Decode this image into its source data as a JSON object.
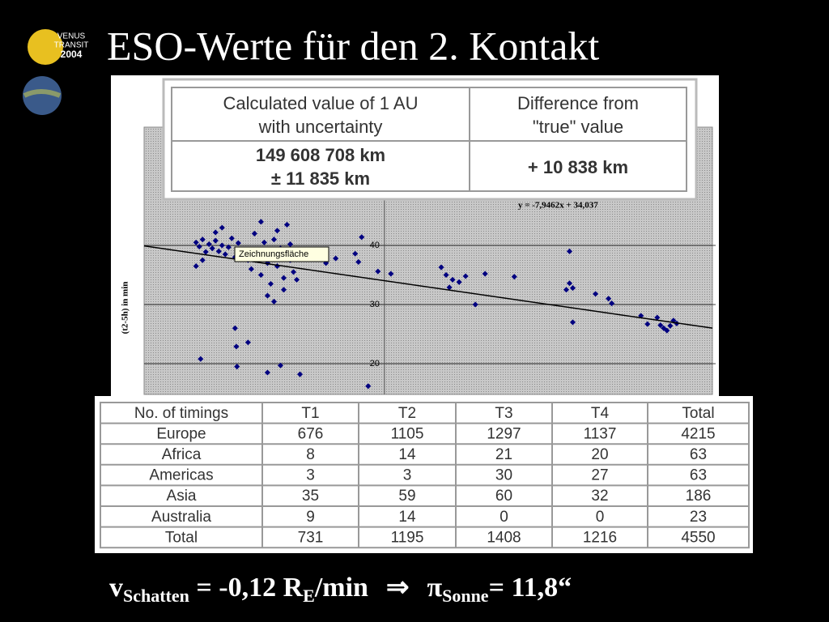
{
  "title": "ESO-Werte für den 2. Kontakt",
  "logo": {
    "line1": "VENUS",
    "line2": "TRANSIT",
    "year": "2004"
  },
  "chart_data": {
    "type": "scatter",
    "y_label": "(t2-5h) in min",
    "tooltip": "Zeichnungsfläche",
    "xlim": [
      -0.74,
      1.01
    ],
    "ylim": [
      14.8,
      60
    ],
    "yticks": [
      20,
      30,
      40
    ],
    "grid": true,
    "trendline": {
      "slope": -7.9462,
      "intercept": 34.037,
      "label": "y = -7,9462x + 34,037",
      "color": "#000000"
    },
    "x": [
      -0.58,
      -0.57,
      -0.56,
      -0.55,
      -0.54,
      -0.53,
      -0.52,
      -0.51,
      -0.5,
      -0.49,
      -0.48,
      -0.47,
      -0.46,
      -0.45,
      -0.56,
      -0.58,
      -0.52,
      -0.5,
      -0.44,
      -0.42,
      -0.41,
      -0.4,
      -0.39,
      -0.38,
      -0.37,
      -0.36,
      -0.35,
      -0.34,
      -0.33,
      -0.32,
      -0.31,
      -0.3,
      -0.29,
      -0.28,
      -0.36,
      -0.34,
      -0.31,
      -0.38,
      -0.33,
      -0.3,
      -0.29,
      -0.27,
      -0.566,
      -0.456,
      -0.454,
      -0.42,
      -0.36,
      -0.32,
      -0.26,
      -0.05,
      -0.46,
      -0.07,
      -0.09,
      -0.08,
      -0.15,
      -0.18,
      -0.02,
      0.02,
      0.175,
      0.19,
      0.2,
      0.21,
      0.23,
      0.25,
      0.28,
      0.31,
      0.4,
      0.57,
      0.57,
      0.58,
      0.58,
      0.56,
      0.65,
      0.69,
      0.7,
      0.79,
      0.81,
      0.84,
      0.86,
      0.87,
      0.89,
      0.88,
      0.9,
      0.85
    ],
    "series": [
      {
        "color": "#000080",
        "values": [
          40.5,
          39.8,
          41,
          38.9,
          40.2,
          39.5,
          40.8,
          39,
          40,
          38.5,
          39.7,
          41.2,
          38,
          40.4,
          37.5,
          36.5,
          42.2,
          43,
          39,
          37.5,
          36,
          42,
          38.5,
          35,
          40.5,
          37,
          33.5,
          41,
          36.5,
          39.5,
          34.5,
          43.5,
          37.5,
          35.5,
          31.5,
          30.5,
          32.5,
          44,
          42.5,
          38.2,
          40.2,
          34.2,
          20.8,
          22.9,
          19.5,
          23.6,
          18.5,
          19.7,
          18.2,
          16.2,
          26,
          41.4,
          38.6,
          37.2,
          37.8,
          37,
          35.6,
          35.2,
          36.3,
          35,
          32.9,
          34.2,
          33.8,
          34.8,
          30,
          35.2,
          34.7,
          39,
          33.6,
          32.8,
          27,
          32.5,
          31.8,
          31,
          30.2,
          28.1,
          26.7,
          27.8,
          26,
          25.6,
          27.3,
          26.4,
          26.8,
          26.5
        ]
      }
    ]
  },
  "result_table": {
    "header": [
      [
        "Calculated value of 1 AU",
        "with uncertainty"
      ],
      [
        "Difference from",
        "\"true\" value"
      ]
    ],
    "row": [
      [
        "149 608 708 km",
        "± 11 835 km"
      ],
      [
        "+ 10 838 km"
      ]
    ]
  },
  "timings_table": {
    "header": [
      "No. of timings",
      "T1",
      "T2",
      "T3",
      "T4",
      "Total"
    ],
    "rows": [
      [
        "Europe",
        676,
        1105,
        1297,
        1137,
        4215
      ],
      [
        "Africa",
        8,
        14,
        21,
        20,
        63
      ],
      [
        "Americas",
        3,
        3,
        30,
        27,
        63
      ],
      [
        "Asia",
        35,
        59,
        60,
        32,
        186
      ],
      [
        "Australia",
        9,
        14,
        0,
        0,
        23
      ],
      [
        "Total",
        731,
        1195,
        1408,
        1216,
        4550
      ]
    ]
  },
  "formula": {
    "v": "v",
    "v_sub": "Schatten",
    "middle": " = -0,12 R",
    "r_sub": "E",
    "unit": "/min",
    "arrow": "⇒",
    "pi": "π",
    "pi_sub": "Sonne",
    "result": "= 11,8“"
  }
}
